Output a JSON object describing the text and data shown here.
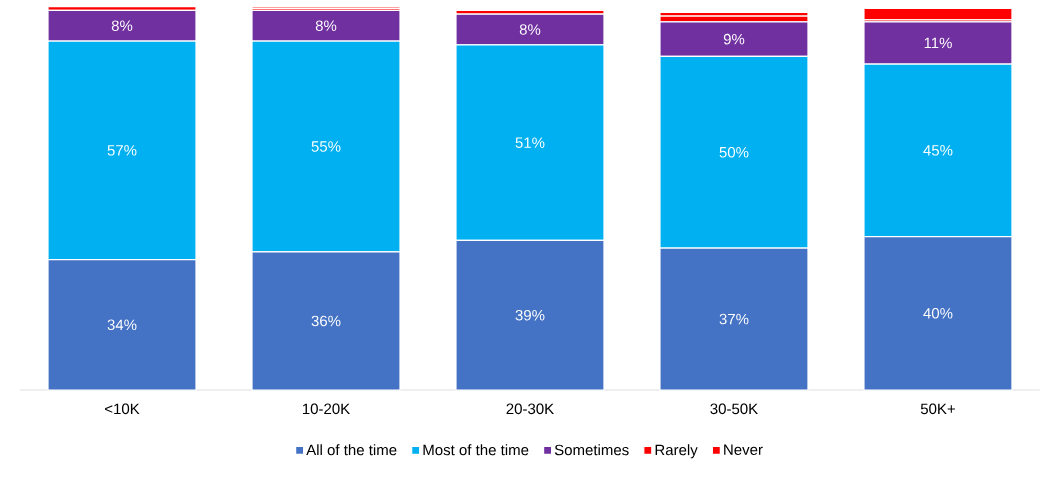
{
  "chart_data": {
    "type": "bar",
    "stacked": true,
    "legend": "bottom",
    "categories": [
      "<10K",
      "10-20K",
      "20-30K",
      "30-50K",
      "50K+"
    ],
    "series": [
      {
        "name": "All of the time",
        "color": "#4472c4",
        "values": [
          34,
          36,
          39,
          37,
          40
        ],
        "value_labels": [
          "34%",
          "36%",
          "39%",
          "37%",
          "40%"
        ]
      },
      {
        "name": "Most of the time",
        "color": "#00b0f0",
        "values": [
          57,
          55,
          51,
          50,
          45
        ],
        "value_labels": [
          "57%",
          "55%",
          "51%",
          "50%",
          "45%"
        ]
      },
      {
        "name": "Sometimes",
        "color": "#7030a0",
        "values": [
          8,
          8,
          8,
          9,
          11
        ],
        "value_labels": [
          "8%",
          "8%",
          "8%",
          "9%",
          "11%"
        ]
      },
      {
        "name": "Rarely",
        "color": "#ff0000",
        "values": [
          1,
          0.5,
          1,
          1.5,
          0.5
        ],
        "value_labels": [
          null,
          null,
          null,
          null,
          null
        ]
      },
      {
        "name": "Never",
        "color": "#ff0000",
        "values": [
          0,
          0.5,
          0.3,
          1,
          3
        ],
        "value_labels": [
          null,
          null,
          null,
          null,
          null
        ]
      }
    ]
  }
}
